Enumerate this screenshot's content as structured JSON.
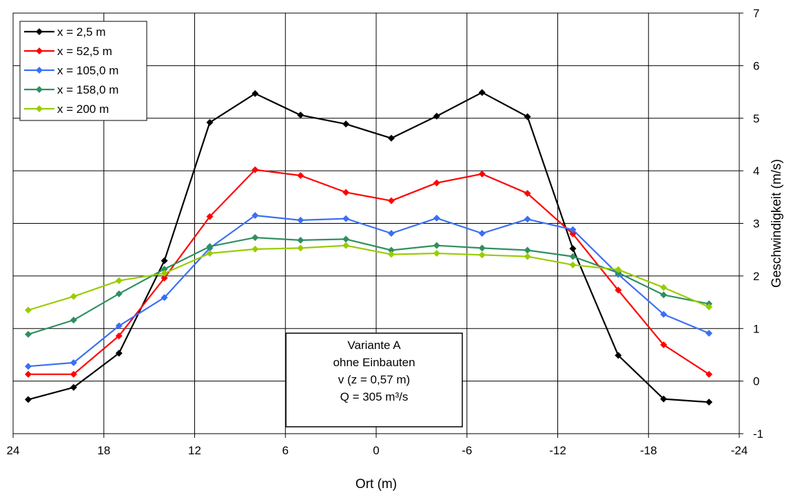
{
  "chart_data": {
    "type": "line",
    "xlabel": "Ort (m)",
    "ylabel": "Geschwindigkeit (m/s)",
    "xlim": [
      24,
      -24
    ],
    "ylim": [
      -1,
      7
    ],
    "xticks": [
      24,
      18,
      12,
      6,
      0,
      -6,
      -12,
      -18,
      -24
    ],
    "xtick_labels": [
      "24",
      "18",
      "12",
      "6",
      "0",
      "-6",
      "-12",
      "-18",
      "-24"
    ],
    "yticks": [
      -1,
      0,
      1,
      2,
      3,
      4,
      5,
      6,
      7
    ],
    "ytick_labels": [
      "-1",
      "0",
      "1",
      "2",
      "3",
      "4",
      "5",
      "6",
      "7"
    ],
    "grid": true,
    "legend_position": "top-left",
    "x": [
      23,
      20,
      17,
      14,
      11,
      8,
      5,
      2,
      -1,
      -4,
      -7,
      -10,
      -13,
      -16,
      -19,
      -22
    ],
    "series": [
      {
        "name": "x = 2,5 m",
        "color": "#000000",
        "values": [
          -0.35,
          -0.12,
          0.53,
          2.29,
          4.92,
          5.47,
          5.06,
          4.89,
          4.62,
          5.04,
          5.49,
          5.03,
          2.52,
          0.49,
          -0.34,
          -0.4
        ]
      },
      {
        "name": "x = 52,5 m",
        "color": "#ff0000",
        "values": [
          0.13,
          0.13,
          0.86,
          1.96,
          3.13,
          4.02,
          3.91,
          3.59,
          3.43,
          3.77,
          3.94,
          3.57,
          2.8,
          1.73,
          0.69,
          0.13
        ]
      },
      {
        "name": "x = 105,0 m",
        "color": "#3a6ff5",
        "values": [
          0.28,
          0.35,
          1.05,
          1.59,
          2.53,
          3.15,
          3.06,
          3.09,
          2.81,
          3.1,
          2.81,
          3.08,
          2.88,
          2.03,
          1.27,
          0.91
        ]
      },
      {
        "name": "x = 158,0 m",
        "color": "#2e9060",
        "values": [
          0.89,
          1.16,
          1.66,
          2.13,
          2.56,
          2.73,
          2.68,
          2.7,
          2.49,
          2.58,
          2.53,
          2.49,
          2.37,
          2.06,
          1.64,
          1.47
        ]
      },
      {
        "name": "x = 200 m",
        "color": "#99cc00",
        "values": [
          1.35,
          1.61,
          1.91,
          2.05,
          2.43,
          2.51,
          2.53,
          2.58,
          2.41,
          2.43,
          2.4,
          2.37,
          2.21,
          2.12,
          1.78,
          1.41
        ]
      }
    ],
    "annotation": [
      "Variante A",
      "ohne Einbauten",
      "v (z = 0,57 m)",
      "Q = 305 m³/s"
    ]
  }
}
